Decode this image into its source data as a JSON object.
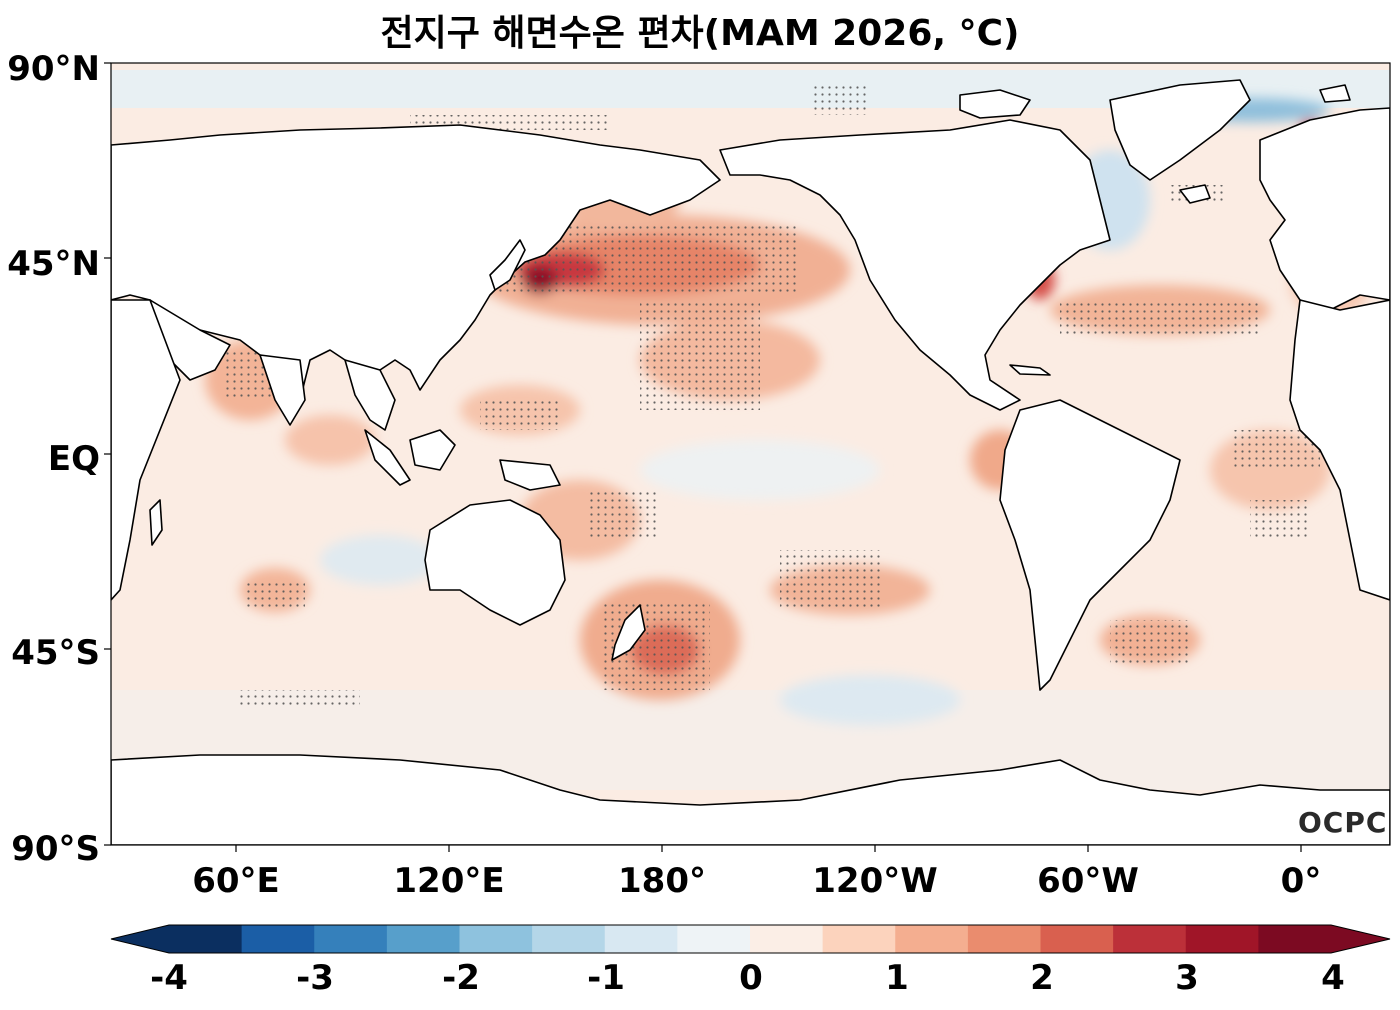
{
  "title": "전지구 해면수온 편차(MAM 2026, °C)",
  "logo_text": "OCPC",
  "lat_labels": [
    "90°N",
    "45°N",
    "EQ",
    "45°S",
    "90°S"
  ],
  "lon_labels": [
    "60°E",
    "120°E",
    "180°",
    "120°W",
    "60°W",
    "0°"
  ],
  "colorbar": {
    "tick_labels": [
      "-4",
      "-3",
      "-2",
      "-1",
      "0",
      "1",
      "2",
      "3",
      "4"
    ],
    "colors": [
      "#0b2f60",
      "#1b5ea6",
      "#3580bb",
      "#579fcb",
      "#8ec2de",
      "#b4d6e8",
      "#d8e8f2",
      "#eef3f6",
      "#fbeee6",
      "#fcd3bd",
      "#f4ae90",
      "#ea8c6e",
      "#d9604f",
      "#bc3039",
      "#a01528",
      "#7c0a22"
    ]
  },
  "chart_data": {
    "type": "heatmap",
    "title": "전지구 해면수온 편차(MAM 2026, °C)",
    "variable": "Sea surface temperature anomaly",
    "units": "°C",
    "season": "MAM 2026",
    "lon_range": [
      30,
      390
    ],
    "lat_range": [
      -90,
      90
    ],
    "color_range": [
      -4,
      4
    ],
    "color_step": 0.5,
    "stippling": "significant regions marked with dots"
  }
}
